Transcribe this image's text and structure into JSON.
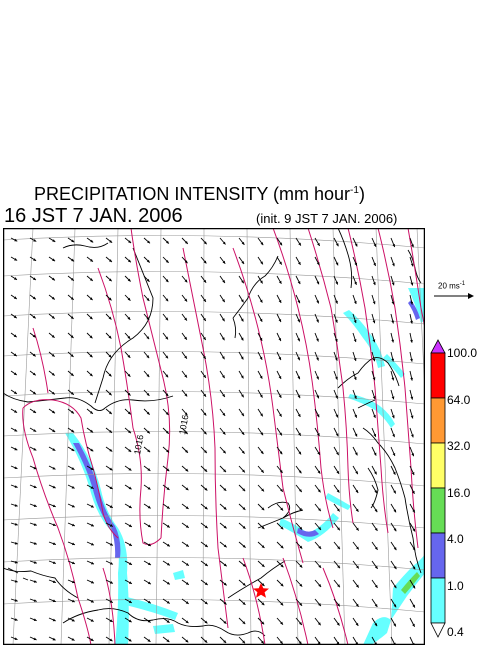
{
  "header": {
    "title_main": "PRECIPITATION INTENSITY (mm hour",
    "title_sup": "-1",
    "title_close": ")",
    "valid_time": "16 JST 7 JAN. 2006",
    "init_time": "(init. 9 JST 7 JAN. 2006)"
  },
  "wind_scale": {
    "label_main": "20 ms",
    "label_sup": "-1"
  },
  "map": {
    "contour_labels": [
      "1016",
      "1016"
    ],
    "marker": "red-star"
  },
  "legend": {
    "labels": [
      "100.0",
      "64.0",
      "32.0",
      "16.0",
      "4.0",
      "1.0",
      "0.4"
    ],
    "colors": [
      "#ff0000",
      "#ff9933",
      "#ffff66",
      "#66dd55",
      "#6666ee",
      "#66ffff"
    ],
    "top_color": "#cc33ff",
    "bottom_color": "#ffffff"
  },
  "colors": {
    "contour": "#cc1166",
    "coast": "#000000",
    "grid": "#999999",
    "arrow": "#000000"
  }
}
